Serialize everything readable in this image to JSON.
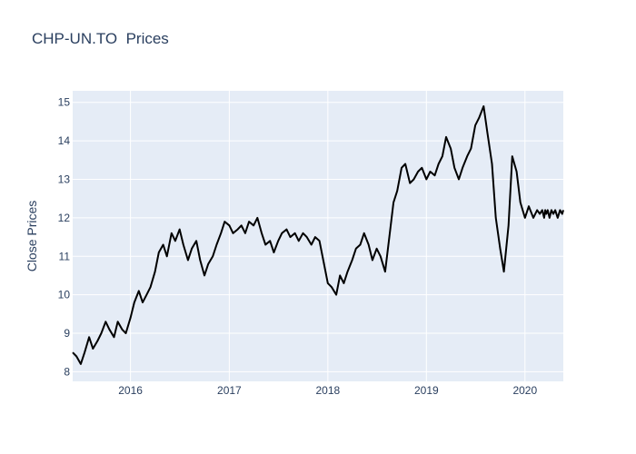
{
  "chart_data": {
    "type": "line",
    "title": "CHP-UN.TO  Prices",
    "xlabel": "",
    "ylabel": "Close Prices",
    "ylim": [
      7.75,
      15.3
    ],
    "xlim": [
      "2015-06-01",
      "2020-05-22"
    ],
    "x_ticks": [
      "2016",
      "2017",
      "2018",
      "2019",
      "2020"
    ],
    "y_ticks": [
      8,
      9,
      10,
      11,
      12,
      13,
      14,
      15
    ],
    "grid": true,
    "line_color": "#000000",
    "plot_bgcolor": "#e5ecf6",
    "series": [
      {
        "x": [
          "2015-06-01",
          "2015-06-15",
          "2015-07-01",
          "2015-07-15",
          "2015-08-01",
          "2015-08-15",
          "2015-09-01",
          "2015-09-15",
          "2015-10-01",
          "2015-10-15",
          "2015-11-01",
          "2015-11-15",
          "2015-12-01",
          "2015-12-15",
          "2016-01-01",
          "2016-01-15",
          "2016-02-01",
          "2016-02-15",
          "2016-03-01",
          "2016-03-15",
          "2016-04-01",
          "2016-04-15",
          "2016-05-01",
          "2016-05-15",
          "2016-06-01",
          "2016-06-15",
          "2016-07-01",
          "2016-07-15",
          "2016-08-01",
          "2016-08-15",
          "2016-09-01",
          "2016-09-15",
          "2016-10-01",
          "2016-10-15",
          "2016-11-01",
          "2016-11-15",
          "2016-12-01",
          "2016-12-15",
          "2017-01-01",
          "2017-01-15",
          "2017-02-01",
          "2017-02-15",
          "2017-03-01",
          "2017-03-15",
          "2017-04-01",
          "2017-04-15",
          "2017-05-01",
          "2017-05-15",
          "2017-06-01",
          "2017-06-15",
          "2017-07-01",
          "2017-07-15",
          "2017-08-01",
          "2017-08-15",
          "2017-09-01",
          "2017-09-15",
          "2017-10-01",
          "2017-10-15",
          "2017-11-01",
          "2017-11-15",
          "2017-12-01",
          "2017-12-15",
          "2018-01-01",
          "2018-01-15",
          "2018-02-01",
          "2018-02-15",
          "2018-03-01",
          "2018-03-15",
          "2018-04-01",
          "2018-04-15",
          "2018-05-01",
          "2018-05-15",
          "2018-06-01",
          "2018-06-15",
          "2018-07-01",
          "2018-07-15",
          "2018-08-01",
          "2018-08-15",
          "2018-09-01",
          "2018-09-15",
          "2018-10-01",
          "2018-10-15",
          "2018-11-01",
          "2018-11-15",
          "2018-12-01",
          "2018-12-15",
          "2019-01-01",
          "2019-01-15",
          "2019-02-01",
          "2019-02-15",
          "2019-03-01",
          "2019-03-15",
          "2019-04-01",
          "2019-04-15",
          "2019-05-01",
          "2019-05-15",
          "2019-06-01",
          "2019-06-15",
          "2019-07-01",
          "2019-07-15",
          "2019-08-01",
          "2019-08-15",
          "2019-09-01",
          "2019-09-15",
          "2019-10-01",
          "2019-10-15",
          "2019-11-01",
          "2019-11-15",
          "2019-12-01",
          "2019-12-15",
          "2020-01-01",
          "2020-01-15",
          "2020-02-01",
          "2020-02-15",
          "2020-02-25",
          "2020-03-05",
          "2020-03-12",
          "2020-03-16",
          "2020-03-20",
          "2020-03-25",
          "2020-04-01",
          "2020-04-08",
          "2020-04-15",
          "2020-04-22",
          "2020-05-01",
          "2020-05-10",
          "2020-05-18",
          "2020-05-22"
        ],
        "y": [
          8.5,
          8.4,
          8.2,
          8.5,
          8.9,
          8.6,
          8.8,
          9.0,
          9.3,
          9.1,
          8.9,
          9.3,
          9.1,
          9.0,
          9.4,
          9.8,
          10.1,
          9.8,
          10.0,
          10.2,
          10.6,
          11.1,
          11.3,
          11.0,
          11.6,
          11.4,
          11.7,
          11.3,
          10.9,
          11.2,
          11.4,
          10.9,
          10.5,
          10.8,
          11.0,
          11.3,
          11.6,
          11.9,
          11.8,
          11.6,
          11.7,
          11.8,
          11.6,
          11.9,
          11.8,
          12.0,
          11.6,
          11.3,
          11.4,
          11.1,
          11.4,
          11.6,
          11.7,
          11.5,
          11.6,
          11.4,
          11.6,
          11.5,
          11.3,
          11.5,
          11.4,
          10.9,
          10.3,
          10.2,
          10.0,
          10.5,
          10.3,
          10.6,
          10.9,
          11.2,
          11.3,
          11.6,
          11.3,
          10.9,
          11.2,
          11.0,
          10.6,
          11.4,
          12.4,
          12.7,
          13.3,
          13.4,
          12.9,
          13.0,
          13.2,
          13.3,
          13.0,
          13.2,
          13.1,
          13.4,
          13.6,
          14.1,
          13.8,
          13.3,
          13.0,
          13.3,
          13.6,
          13.8,
          14.4,
          14.6,
          14.9,
          14.2,
          13.4,
          12.0,
          11.2,
          10.6,
          11.8,
          13.6,
          13.2,
          12.4,
          12.0,
          12.3,
          12.0,
          12.2,
          12.1,
          12.2,
          12.0,
          12.2,
          12.1,
          12.2,
          12.0,
          12.2,
          12.1,
          12.2,
          12.0,
          12.2,
          12.1,
          12.2
        ]
      }
    ]
  }
}
